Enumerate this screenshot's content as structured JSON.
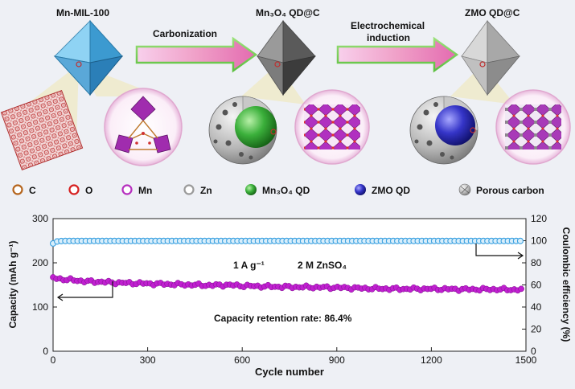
{
  "schematic": {
    "stage1_label": "Mn-MIL-100",
    "arrow1_label": "Carbonization",
    "stage2_label": "Mn₃O₄ QD@C",
    "arrow2_label_line1": "Electrochemical",
    "arrow2_label_line2": "induction",
    "stage3_label": "ZMO QD@C"
  },
  "legend": {
    "items": [
      {
        "label": "C",
        "icon": "carbon-atom-icon",
        "color": "#b5651d"
      },
      {
        "label": "O",
        "icon": "oxygen-atom-icon",
        "color": "#d62020"
      },
      {
        "label": "Mn",
        "icon": "manganese-atom-icon",
        "color": "#b62fbf"
      },
      {
        "label": "Zn",
        "icon": "zinc-atom-icon",
        "color": "#9a9a9a"
      },
      {
        "label": "Mn₃O₄ QD",
        "icon": "mn3o4-qd-icon",
        "color": "#2f9e2f"
      },
      {
        "label": "ZMO QD",
        "icon": "zmo-qd-icon",
        "color": "#2a2fb0"
      },
      {
        "label": "Porous carbon",
        "icon": "porous-carbon-icon",
        "color": "#8a8a8a"
      }
    ]
  },
  "chart_data": {
    "type": "scatter",
    "xlabel": "Cycle number",
    "ylabel_left": "Capacity (mAh g⁻¹)",
    "ylabel_right": "Coulombic efficiency (%)",
    "xlim": [
      0,
      1500
    ],
    "ylim_left": [
      0,
      300
    ],
    "ylim_right": [
      0,
      120
    ],
    "x_ticks": [
      0,
      300,
      600,
      900,
      1200,
      1500
    ],
    "y_ticks_left": [
      0,
      100,
      200,
      300
    ],
    "y_ticks_right": [
      0,
      20,
      40,
      60,
      80,
      100,
      120
    ],
    "annotations": {
      "current_density": "1 A g⁻¹",
      "electrolyte": "2 M ZnSO₄",
      "retention": "Capacity retention rate: 86.4%"
    },
    "series": [
      {
        "axis": "left",
        "color": "#c020d0",
        "points": [
          [
            0,
            166
          ],
          [
            20,
            164
          ],
          [
            40,
            162
          ],
          [
            60,
            161
          ],
          [
            80,
            160
          ],
          [
            100,
            158
          ],
          [
            150,
            157
          ],
          [
            200,
            155
          ],
          [
            300,
            153
          ],
          [
            400,
            151
          ],
          [
            500,
            149
          ],
          [
            550,
            150
          ],
          [
            600,
            148
          ],
          [
            700,
            146
          ],
          [
            800,
            145
          ],
          [
            900,
            144
          ],
          [
            950,
            143
          ],
          [
            1000,
            142
          ],
          [
            1100,
            141
          ],
          [
            1200,
            141
          ],
          [
            1300,
            140
          ],
          [
            1400,
            140
          ],
          [
            1490,
            139
          ]
        ]
      },
      {
        "axis": "right",
        "color": "#3aa0e0",
        "points": [
          [
            0,
            97.5
          ],
          [
            15,
            99.6
          ],
          [
            40,
            99.8
          ],
          [
            100,
            99.8
          ],
          [
            500,
            99.8
          ],
          [
            1000,
            99.8
          ],
          [
            1490,
            99.8
          ]
        ]
      }
    ]
  }
}
